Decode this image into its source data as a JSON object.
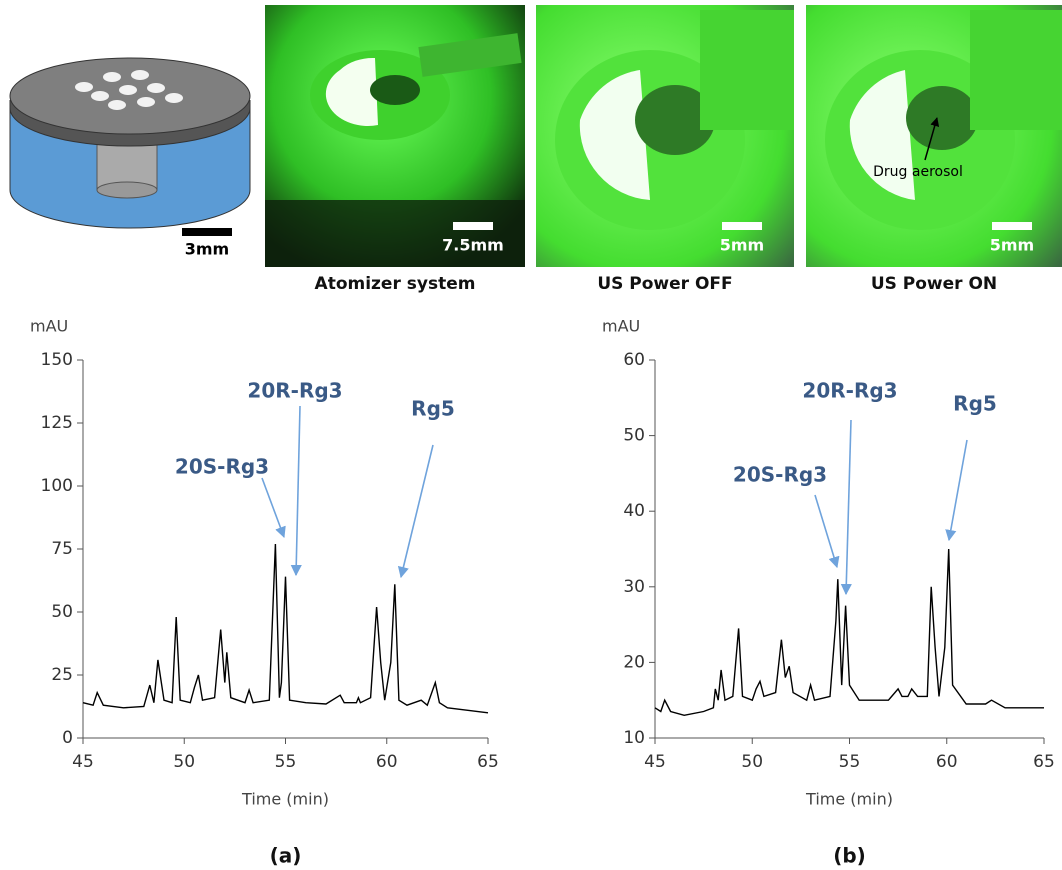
{
  "figure": {
    "scale_bars": [
      "3mm",
      "7.5mm",
      "5mm",
      "5mm"
    ],
    "photo_captions": [
      "Atomizer system",
      "US Power OFF",
      "US Power ON"
    ],
    "photo_annotation": "Drug aerosol"
  },
  "chart_data": [
    {
      "type": "line",
      "panel_label": "(a)",
      "ylabel": "mAU",
      "xlabel": "Time (min)",
      "color": "#000000",
      "x": [
        45,
        45.5,
        45.7,
        46,
        47,
        48,
        48.3,
        48.5,
        48.7,
        49,
        49.4,
        49.6,
        49.8,
        50.3,
        50.5,
        50.7,
        50.9,
        51.5,
        51.8,
        52,
        52.1,
        52.3,
        53,
        53.2,
        53.4,
        54.2,
        54.5,
        54.7,
        54.8,
        55,
        55.2,
        56,
        57,
        57.7,
        57.9,
        58.5,
        58.6,
        58.7,
        59.2,
        59.5,
        59.7,
        59.9,
        60.2,
        60.4,
        60.6,
        61,
        61.7,
        62,
        62.4,
        62.6,
        63,
        64,
        65
      ],
      "values": [
        14,
        13,
        18,
        13,
        12,
        12.5,
        21,
        14,
        31,
        15,
        14,
        48,
        15,
        14,
        20,
        25,
        15,
        16,
        43,
        22,
        34,
        16,
        14,
        19,
        14,
        15,
        77,
        16,
        22,
        64,
        15,
        14,
        13.5,
        17,
        14,
        14,
        16,
        14,
        16,
        52,
        30,
        15,
        30,
        61,
        15,
        13,
        15,
        13,
        22,
        14,
        12,
        11,
        10
      ],
      "xlim": [
        45,
        65
      ],
      "ylim": [
        0,
        150
      ],
      "xticks": [
        45,
        50,
        55,
        60,
        65
      ],
      "yticks": [
        0,
        25,
        50,
        75,
        100,
        125,
        150
      ],
      "annotations": [
        "20S-Rg3",
        "20R-Rg3",
        "Rg5"
      ]
    },
    {
      "type": "line",
      "panel_label": "(b)",
      "ylabel": "mAU",
      "xlabel": "Time (min)",
      "color": "#000000",
      "x": [
        45,
        45.3,
        45.5,
        45.8,
        46.5,
        47.5,
        48,
        48.1,
        48.25,
        48.4,
        48.6,
        49,
        49.3,
        49.5,
        50,
        50.2,
        50.4,
        50.6,
        51.2,
        51.5,
        51.7,
        51.9,
        52.1,
        52.8,
        53,
        53.2,
        54,
        54.3,
        54.4,
        54.6,
        54.8,
        55,
        55.5,
        57,
        57.5,
        57.7,
        58,
        58.2,
        58.5,
        59,
        59.2,
        59.4,
        59.6,
        59.9,
        60.1,
        60.3,
        61,
        62,
        62.3,
        63,
        64,
        65
      ],
      "values": [
        14,
        13.5,
        15,
        13.5,
        13,
        13.5,
        14,
        16.5,
        15,
        19,
        15,
        15.5,
        24.5,
        15.5,
        15,
        16.5,
        17.5,
        15.5,
        16,
        23,
        18,
        19.5,
        16,
        15,
        17,
        15,
        15.5,
        25.5,
        31,
        17,
        27.5,
        17,
        15,
        15,
        16.5,
        15.5,
        15.5,
        16.5,
        15.5,
        15.5,
        30,
        22,
        15.5,
        22,
        35,
        17,
        14.5,
        14.5,
        15,
        14,
        14,
        14
      ],
      "xlim": [
        45,
        65
      ],
      "ylim": [
        10,
        60
      ],
      "xticks": [
        45,
        50,
        55,
        60,
        65
      ],
      "yticks": [
        10,
        20,
        30,
        40,
        50,
        60
      ],
      "annotations": [
        "20S-Rg3",
        "20R-Rg3",
        "Rg5"
      ]
    }
  ]
}
